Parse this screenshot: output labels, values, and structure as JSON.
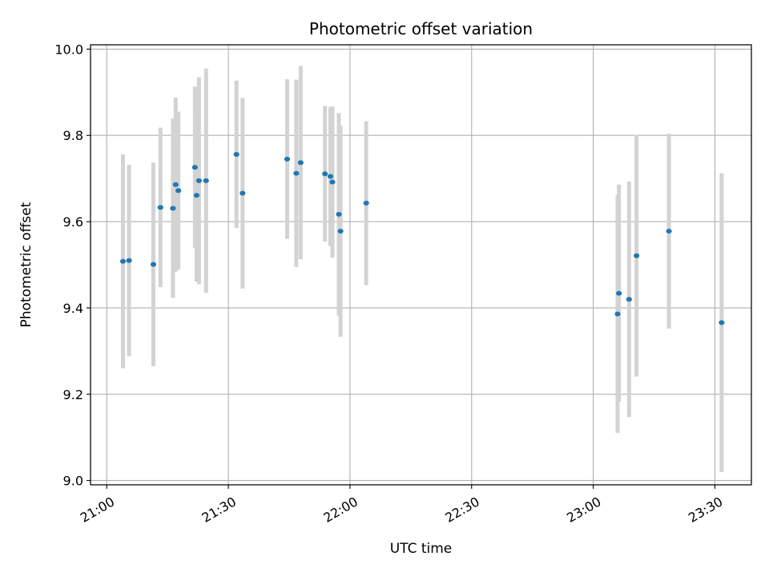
{
  "chart_data": {
    "type": "scatter",
    "title": "Photometric offset variation",
    "xlabel": "UTC time",
    "ylabel": "Photometric offset",
    "x_unit": "UTC HH:MM",
    "xlim": [
      "20:56",
      "23:39"
    ],
    "ylim": [
      8.99,
      10.01
    ],
    "x_ticks": [
      "21:00",
      "21:30",
      "22:00",
      "22:30",
      "23:00",
      "23:30"
    ],
    "y_ticks": [
      9.0,
      9.2,
      9.4,
      9.6,
      9.8,
      10.0
    ],
    "y_tick_labels": [
      "9.0",
      "9.2",
      "9.4",
      "9.6",
      "9.8",
      "10.0"
    ],
    "grid": true,
    "colors": {
      "point": "#1f77b4",
      "errorbar": "#d3d3d3",
      "grid": "#b0b0b0"
    },
    "points": [
      {
        "x": "21:04:00",
        "y": 9.508,
        "err": 0.248
      },
      {
        "x": "21:05:30",
        "y": 9.51,
        "err": 0.222
      },
      {
        "x": "21:11:30",
        "y": 9.501,
        "err": 0.236
      },
      {
        "x": "21:13:15",
        "y": 9.633,
        "err": 0.185
      },
      {
        "x": "21:16:20",
        "y": 9.631,
        "err": 0.208
      },
      {
        "x": "21:17:00",
        "y": 9.686,
        "err": 0.202
      },
      {
        "x": "21:17:40",
        "y": 9.672,
        "err": 0.183
      },
      {
        "x": "21:21:45",
        "y": 9.726,
        "err": 0.187
      },
      {
        "x": "21:22:10",
        "y": 9.661,
        "err": 0.2
      },
      {
        "x": "21:22:45",
        "y": 9.695,
        "err": 0.24
      },
      {
        "x": "21:24:30",
        "y": 9.695,
        "err": 0.26
      },
      {
        "x": "21:32:00",
        "y": 9.756,
        "err": 0.171
      },
      {
        "x": "21:33:30",
        "y": 9.666,
        "err": 0.221
      },
      {
        "x": "21:44:30",
        "y": 9.745,
        "err": 0.185
      },
      {
        "x": "21:46:45",
        "y": 9.712,
        "err": 0.217
      },
      {
        "x": "21:47:50",
        "y": 9.737,
        "err": 0.224
      },
      {
        "x": "21:53:50",
        "y": 9.711,
        "err": 0.157
      },
      {
        "x": "21:55:10",
        "y": 9.705,
        "err": 0.161
      },
      {
        "x": "21:55:40",
        "y": 9.692,
        "err": 0.175
      },
      {
        "x": "21:57:15",
        "y": 9.617,
        "err": 0.235
      },
      {
        "x": "21:57:40",
        "y": 9.578,
        "err": 0.245
      },
      {
        "x": "22:04:00",
        "y": 9.643,
        "err": 0.19
      },
      {
        "x": "23:06:00",
        "y": 9.386,
        "err": 0.276
      },
      {
        "x": "23:06:20",
        "y": 9.434,
        "err": 0.252
      },
      {
        "x": "23:08:50",
        "y": 9.42,
        "err": 0.273
      },
      {
        "x": "23:10:40",
        "y": 9.521,
        "err": 0.28
      },
      {
        "x": "23:18:40",
        "y": 9.578,
        "err": 0.226
      },
      {
        "x": "23:31:40",
        "y": 9.366,
        "err": 0.346
      }
    ]
  }
}
